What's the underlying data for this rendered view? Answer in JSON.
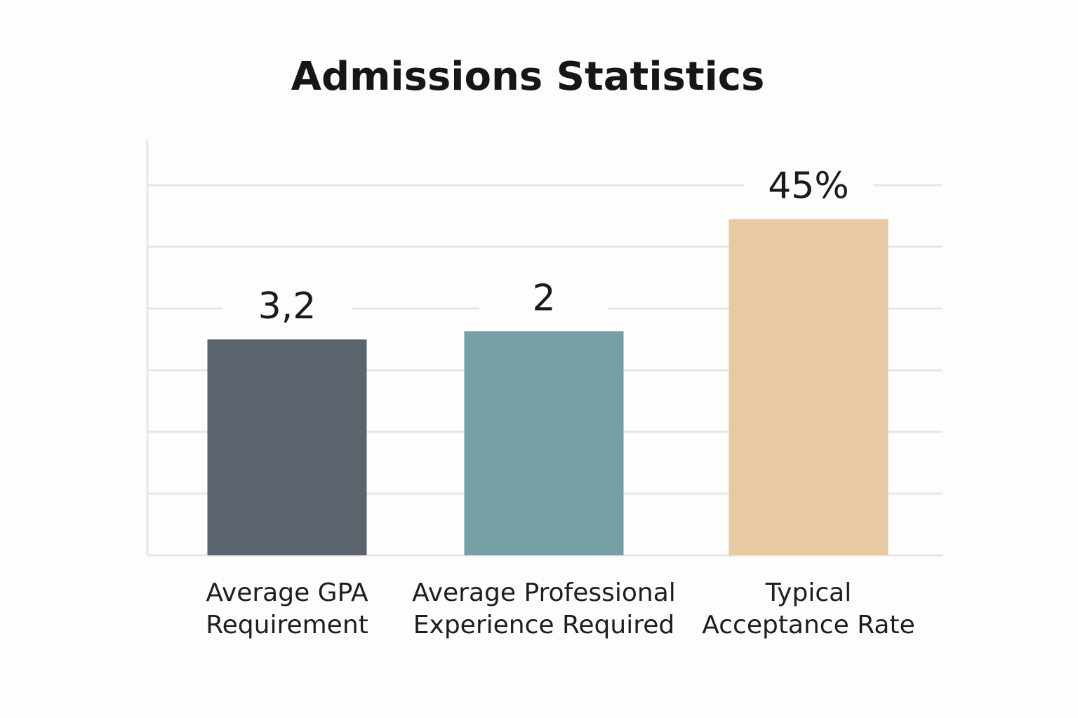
{
  "chart_data": {
    "type": "bar",
    "title": "Admissions Statistics",
    "xlabel": "",
    "ylabel": "",
    "grid": true,
    "legend": "none",
    "categories": [
      [
        "Average GPA",
        "Requirement"
      ],
      [
        "Average Professional",
        "Experience Required"
      ],
      [
        "Typical",
        "Acceptance Rate"
      ]
    ],
    "value_labels": [
      "3,2",
      "2",
      "45%"
    ],
    "values": [
      3.2,
      2,
      45
    ],
    "relative_bar_heights": [
      0.52,
      0.54,
      0.81
    ],
    "colors": [
      "#5b636c",
      "#76a0a6",
      "#e7c9a3"
    ]
  }
}
